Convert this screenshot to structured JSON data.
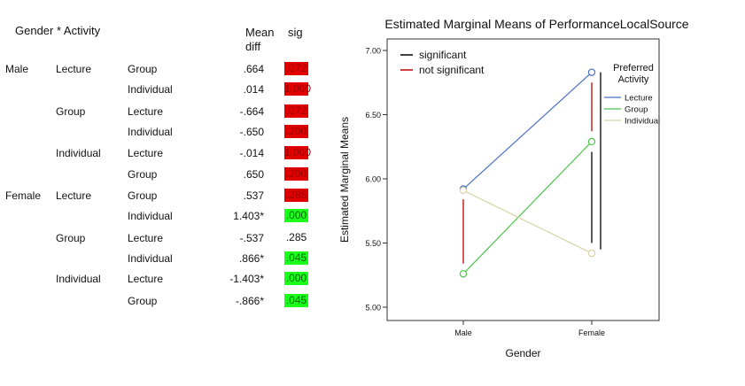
{
  "table": {
    "header": {
      "title": "Gender * Activity",
      "mean_diff_line1": "Mean",
      "mean_diff_line2": "diff",
      "sig": "sig"
    },
    "rows": [
      {
        "gender": "Male",
        "activity1": "Lecture",
        "activity2": "Group",
        "mean_diff": ".664",
        "sig": ".072",
        "sig_status": "red"
      },
      {
        "gender": "",
        "activity1": "",
        "activity2": "Individual",
        "mean_diff": ".014",
        "sig": "1.000",
        "sig_status": "red"
      },
      {
        "gender": "",
        "activity1": "Group",
        "activity2": "Lecture",
        "mean_diff": "-.664",
        "sig": ".072",
        "sig_status": "red"
      },
      {
        "gender": "",
        "activity1": "",
        "activity2": "Individual",
        "mean_diff": "-.650",
        "sig": ".200",
        "sig_status": "red"
      },
      {
        "gender": "",
        "activity1": "Individual",
        "activity2": "Lecture",
        "mean_diff": "-.014",
        "sig": "1.000",
        "sig_status": "red"
      },
      {
        "gender": "",
        "activity1": "",
        "activity2": "Group",
        "mean_diff": ".650",
        "sig": ".200",
        "sig_status": "red"
      },
      {
        "gender": "Female",
        "activity1": "Lecture",
        "activity2": "Group",
        "mean_diff": ".537",
        "sig": ".285",
        "sig_status": "red"
      },
      {
        "gender": "",
        "activity1": "",
        "activity2": "Individual",
        "mean_diff": "1.403*",
        "sig": ".000",
        "sig_status": "green"
      },
      {
        "gender": "",
        "activity1": "Group",
        "activity2": "Lecture",
        "mean_diff": "-.537",
        "sig": ".285",
        "sig_status": "plain"
      },
      {
        "gender": "",
        "activity1": "",
        "activity2": "Individual",
        "mean_diff": ".866*",
        "sig": ".045",
        "sig_status": "green"
      },
      {
        "gender": "",
        "activity1": "Individual",
        "activity2": "Lecture",
        "mean_diff": "-1.403*",
        "sig": ".000",
        "sig_status": "green"
      },
      {
        "gender": "",
        "activity1": "",
        "activity2": "Group",
        "mean_diff": "-.866*",
        "sig": ".045",
        "sig_status": "green"
      }
    ]
  },
  "colors": {
    "sig_red": "#e00000",
    "sig_green": "#1aff1a",
    "lecture": "#4a6fc7",
    "group": "#4cc44c",
    "individual": "#d8d4a8",
    "significant": "#000000",
    "not_significant": "#c00000"
  },
  "chart_data": {
    "type": "line",
    "title": "Estimated Marginal Means of PerformanceLocalSource",
    "xlabel": "Gender",
    "ylabel": "Estimated Marginal Means",
    "categories": [
      "Male",
      "Female"
    ],
    "ylim": [
      5.0,
      7.0
    ],
    "yticks": [
      "5.00",
      "5.50",
      "6.00",
      "6.50",
      "7.00"
    ],
    "legend_title_line1": "Preferred",
    "legend_title_line2": "Activity",
    "series": [
      {
        "name": "Lecture",
        "values": [
          5.92,
          6.83
        ],
        "color": "#4a6fc7"
      },
      {
        "name": "Group",
        "values": [
          5.26,
          6.29
        ],
        "color": "#4cc44c"
      },
      {
        "name": "Individual",
        "values": [
          5.91,
          5.42
        ],
        "color": "#d8d4a8"
      }
    ],
    "significance_legend": [
      {
        "label": "significant",
        "color": "#000000"
      },
      {
        "label": "not significant",
        "color": "#c00000"
      }
    ],
    "significance_bars": [
      {
        "category": "Male",
        "y_range": [
          5.34,
          5.84
        ],
        "status": "not significant"
      },
      {
        "category": "Female",
        "y_range": [
          6.37,
          6.75
        ],
        "status": "not significant"
      },
      {
        "category": "Female",
        "y_range": [
          5.5,
          6.21
        ],
        "status": "significant"
      },
      {
        "category": "Female",
        "y_range": [
          5.45,
          6.83
        ],
        "status": "significant"
      }
    ]
  }
}
